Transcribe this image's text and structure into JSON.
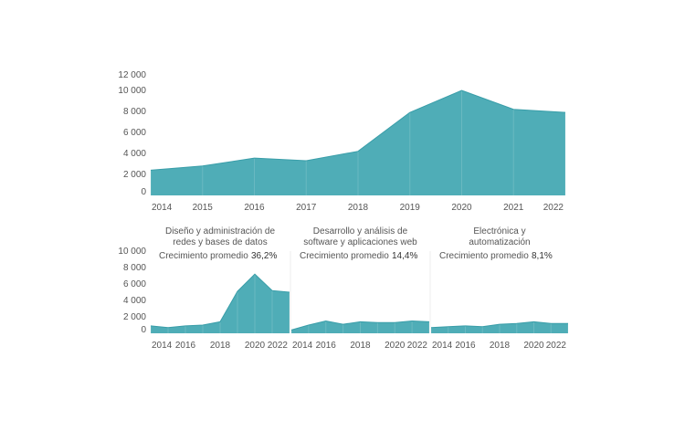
{
  "colors": {
    "area": "#4fadb7",
    "line": "#3a9ea9",
    "grid": "#eeeeee"
  },
  "chart_data": [
    {
      "type": "area",
      "title": "",
      "x": [
        2014,
        2015,
        2016,
        2017,
        2018,
        2019,
        2020,
        2021,
        2022
      ],
      "values": [
        2400,
        2800,
        3550,
        3300,
        4200,
        7900,
        10000,
        8200,
        7900
      ],
      "yticks": [
        "12 000",
        "10 000",
        "8 000",
        "6 000",
        "4 000",
        "2 000",
        "0"
      ],
      "ytick_values": [
        12000,
        10000,
        8000,
        6000,
        4000,
        2000,
        0
      ],
      "xticks": [
        "2014",
        "2015",
        "2016",
        "2017",
        "2018",
        "2019",
        "2020",
        "2021",
        "2022"
      ]
    },
    {
      "type": "area",
      "title_lines": [
        "Diseño y administración de",
        "redes y bases de datos"
      ],
      "growth_label": "Crecimiento promedio",
      "growth_value": "36,2%",
      "x": [
        2014,
        2015,
        2016,
        2017,
        2018,
        2019,
        2020,
        2021,
        2022
      ],
      "values": [
        900,
        700,
        900,
        1000,
        1400,
        5100,
        7200,
        5200,
        5000
      ],
      "yticks": [
        "10 000",
        "8 000",
        "6 000",
        "4 000",
        "2 000",
        "0"
      ],
      "ytick_values": [
        10000,
        8000,
        6000,
        4000,
        2000,
        0
      ],
      "xticks": [
        "2014",
        "2016",
        "2018",
        "2020",
        "2022"
      ]
    },
    {
      "type": "area",
      "title_lines": [
        "Desarrollo y análisis de",
        "software y aplicaciones web"
      ],
      "growth_label": "Crecimiento promedio",
      "growth_value": "14,4%",
      "x": [
        2014,
        2015,
        2016,
        2017,
        2018,
        2019,
        2020,
        2021,
        2022
      ],
      "values": [
        400,
        1000,
        1500,
        1100,
        1400,
        1300,
        1300,
        1500,
        1400
      ],
      "xticks": [
        "2014",
        "2016",
        "2018",
        "2020",
        "2022"
      ]
    },
    {
      "type": "area",
      "title_lines": [
        "Electrónica y",
        "automatización"
      ],
      "growth_label": "Crecimiento promedio",
      "growth_value": "8,1%",
      "x": [
        2014,
        2015,
        2016,
        2017,
        2018,
        2019,
        2020,
        2021,
        2022
      ],
      "values": [
        700,
        800,
        900,
        800,
        1100,
        1200,
        1400,
        1200,
        1200
      ],
      "xticks": [
        "2014",
        "2016",
        "2018",
        "2020",
        "2022"
      ]
    }
  ]
}
